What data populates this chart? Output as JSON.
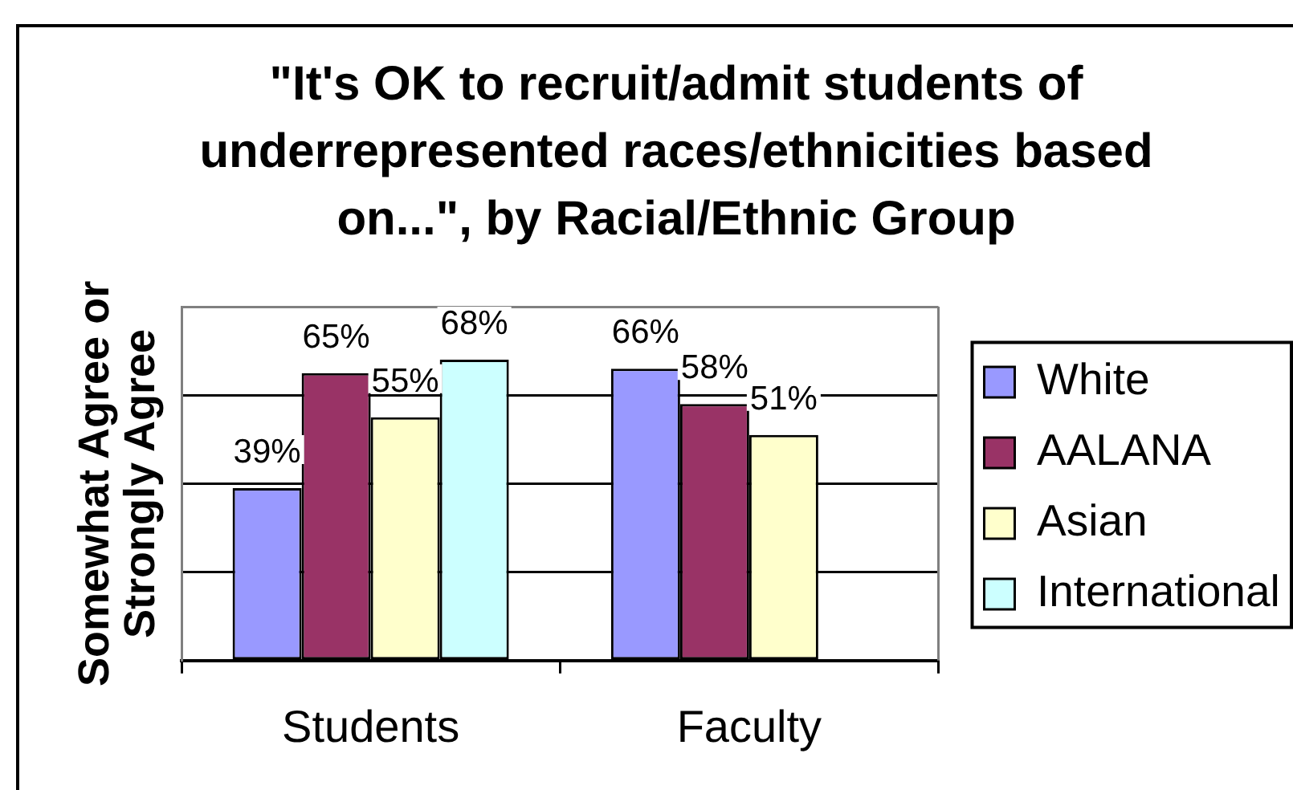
{
  "chart_data": {
    "type": "bar",
    "title": "\"It's OK to recruit/admit students of underrepresented races/ethnicities based on...\", by Racial/Ethnic Group",
    "ylabel": "Somewhat Agree or Strongly Agree",
    "categories": [
      "Students",
      "Faculty"
    ],
    "series": [
      {
        "name": "White",
        "color": "#9999ff",
        "values": [
          39,
          66
        ],
        "value_labels": [
          "39%",
          "66%"
        ]
      },
      {
        "name": "AALANA",
        "color": "#993366",
        "values": [
          65,
          58
        ],
        "value_labels": [
          "65%",
          "58%"
        ]
      },
      {
        "name": "Asian",
        "color": "#ffffcc",
        "values": [
          55,
          51
        ],
        "value_labels": [
          "55%",
          "51%"
        ]
      },
      {
        "name": "International",
        "color": "#ccffff",
        "values": [
          68,
          null
        ],
        "value_labels": [
          "68%",
          null
        ]
      }
    ],
    "ylim": [
      0,
      80
    ],
    "yticks": [
      {
        "value": 0,
        "label": null
      },
      {
        "value": 20,
        "label": null
      },
      {
        "value": 40,
        "label": null
      },
      {
        "value": 60,
        "label": null
      },
      {
        "value": 80,
        "label": null
      }
    ],
    "grid": "y",
    "legend": "right",
    "tick_labels": "x"
  }
}
